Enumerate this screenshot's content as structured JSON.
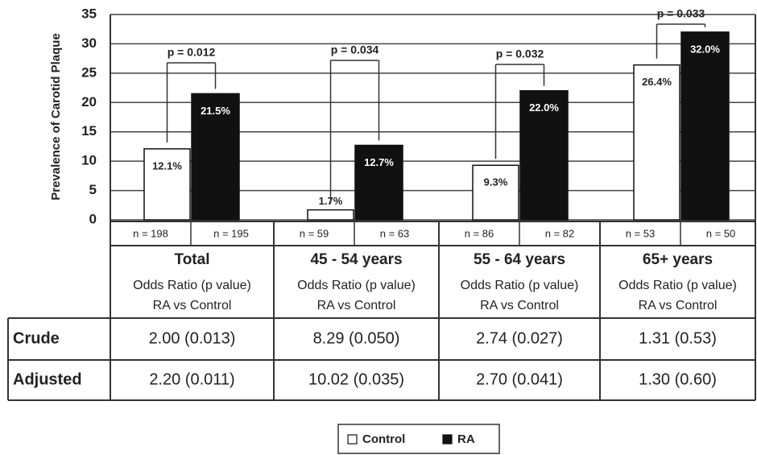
{
  "chart_data": {
    "type": "bar",
    "y_label": "Prevalence of Carotid Plaque",
    "categories": [
      "Total",
      "45 - 54 years",
      "55 - 64 years",
      "65+ years"
    ],
    "series": [
      {
        "name": "Control",
        "color": "#ffffff",
        "values": [
          12.1,
          1.7,
          9.3,
          26.4
        ],
        "value_labels": [
          "12.1%",
          "1.7%",
          "9.3%",
          "26.4%"
        ],
        "n_labels": [
          "n = 198",
          "n = 59",
          "n = 86",
          "n = 53"
        ]
      },
      {
        "name": "RA",
        "color": "#111111",
        "values": [
          21.5,
          12.7,
          22.0,
          32.0
        ],
        "value_labels": [
          "21.5%",
          "12.7%",
          "22.0%",
          "32.0%"
        ],
        "n_labels": [
          "n = 195",
          "n = 63",
          "n = 82",
          "n = 50"
        ]
      }
    ],
    "annotations": [
      "p = 0.012",
      "p = 0.034",
      "p = 0.032",
      "p = 0.033"
    ],
    "ylim": [
      0,
      35
    ],
    "yticks": [
      0,
      5,
      10,
      15,
      20,
      25,
      30,
      35
    ],
    "grid": true
  },
  "table": {
    "column_note": [
      "Odds Ratio (p value)",
      "RA vs Control"
    ],
    "rows": [
      [
        "Crude",
        "2.00 (0.013)",
        "8.29 (0.050)",
        "2.74 (0.027)",
        "1.31 (0.53)"
      ],
      [
        "Adjusted",
        "2.20 (0.011)",
        "10.02 (0.035)",
        "2.70 (0.041)",
        "1.30 (0.60)"
      ]
    ]
  }
}
